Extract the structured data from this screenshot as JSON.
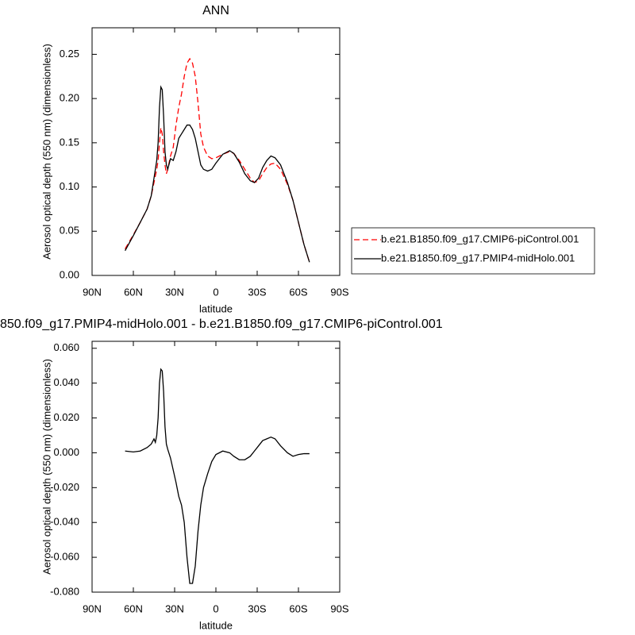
{
  "chart_data": [
    {
      "type": "line",
      "title": "ANN",
      "xlabel": "latitude",
      "ylabel": "Aerosol optical depth (550 nm) (dimensionless)",
      "x": [
        66,
        60,
        55,
        50,
        47,
        45,
        43,
        42,
        41,
        40,
        39,
        38,
        37,
        36,
        35,
        33,
        31,
        29,
        27,
        25,
        23,
        21,
        19,
        17,
        15,
        13,
        11,
        9,
        6,
        3,
        0,
        -5,
        -10,
        -13,
        -17,
        -21,
        -25,
        -28,
        -31,
        -34,
        -37,
        -40,
        -43,
        -47,
        -52,
        -56,
        -60,
        -64,
        -68
      ],
      "series": [
        {
          "name": "b.e21.B1850.f09_g17.CMIP6-piControl.001",
          "color": "#ff0000",
          "line_style": "dashed",
          "values": [
            0.03,
            0.046,
            0.06,
            0.075,
            0.09,
            0.105,
            0.12,
            0.13,
            0.15,
            0.167,
            0.16,
            0.14,
            0.125,
            0.115,
            0.12,
            0.135,
            0.145,
            0.17,
            0.19,
            0.205,
            0.225,
            0.24,
            0.245,
            0.24,
            0.225,
            0.195,
            0.16,
            0.145,
            0.135,
            0.132,
            0.133,
            0.137,
            0.14,
            0.138,
            0.13,
            0.12,
            0.11,
            0.105,
            0.107,
            0.115,
            0.122,
            0.126,
            0.127,
            0.12,
            0.103,
            0.085,
            0.06,
            0.035,
            0.015
          ]
        },
        {
          "name": "b.e21.B1850.f09_g17.PMIP4-midHolo.001",
          "color": "#000000",
          "line_style": "solid",
          "values": [
            0.028,
            0.045,
            0.06,
            0.075,
            0.09,
            0.11,
            0.13,
            0.15,
            0.19,
            0.213,
            0.21,
            0.18,
            0.14,
            0.125,
            0.12,
            0.132,
            0.13,
            0.14,
            0.155,
            0.16,
            0.165,
            0.17,
            0.17,
            0.165,
            0.155,
            0.14,
            0.125,
            0.12,
            0.118,
            0.12,
            0.127,
            0.137,
            0.141,
            0.138,
            0.128,
            0.115,
            0.107,
            0.105,
            0.11,
            0.122,
            0.13,
            0.135,
            0.133,
            0.125,
            0.105,
            0.085,
            0.06,
            0.035,
            0.015
          ]
        }
      ],
      "xlim": [
        90,
        -90
      ],
      "xticks": [
        {
          "value": 90,
          "label": "90N"
        },
        {
          "value": 60,
          "label": "60N"
        },
        {
          "value": 30,
          "label": "30N"
        },
        0,
        {
          "value": -30,
          "label": "30S"
        },
        {
          "value": -60,
          "label": "60S"
        },
        {
          "value": -90,
          "label": "90S"
        }
      ],
      "ylim": [
        0,
        0.28
      ],
      "yticks": [
        {
          "value": 0,
          "label": "0.00"
        },
        0.05,
        {
          "value": 0.1,
          "label": "0.10"
        },
        0.15,
        {
          "value": 0.2,
          "label": "0.20"
        },
        0.25
      ],
      "legend": "outside-right"
    },
    {
      "type": "line",
      "title": "850.f09_g17.PMIP4-midHolo.001 - b.e21.B1850.f09_g17.CMIP6-piControl.001",
      "xlabel": "latitude",
      "ylabel": "Aerosol optical depth (550 nm) (dimensionless)",
      "x": [
        66,
        60,
        55,
        50,
        47,
        45,
        44,
        43,
        42,
        41,
        40,
        39,
        38,
        37,
        36,
        35,
        33,
        31,
        29,
        27,
        25,
        23,
        21,
        19,
        17,
        15,
        13,
        11,
        9,
        6,
        3,
        0,
        -5,
        -10,
        -13,
        -17,
        -21,
        -25,
        -28,
        -31,
        -34,
        -37,
        -40,
        -43,
        -47,
        -52,
        -56,
        -60,
        -64,
        -68
      ],
      "values": [
        0.001,
        0.0005,
        0.001,
        0.003,
        0.005,
        0.008,
        0.006,
        0.01,
        0.02,
        0.04,
        0.048,
        0.047,
        0.035,
        0.015,
        0.005,
        0.002,
        -0.003,
        -0.01,
        -0.017,
        -0.025,
        -0.03,
        -0.04,
        -0.06,
        -0.075,
        -0.075,
        -0.065,
        -0.045,
        -0.03,
        -0.02,
        -0.012,
        -0.005,
        -0.001,
        0.001,
        0.0,
        -0.002,
        -0.004,
        -0.004,
        -0.002,
        0.001,
        0.004,
        0.007,
        0.008,
        0.009,
        0.008,
        0.004,
        0.0,
        -0.002,
        -0.001,
        -0.0005,
        -0.0005
      ],
      "color": "#000000",
      "xlim": [
        90,
        -90
      ],
      "xticks": [
        {
          "value": 90,
          "label": "90N"
        },
        {
          "value": 60,
          "label": "60N"
        },
        {
          "value": 30,
          "label": "30N"
        },
        0,
        {
          "value": -30,
          "label": "30S"
        },
        {
          "value": -60,
          "label": "60S"
        },
        {
          "value": -90,
          "label": "90S"
        }
      ],
      "ylim": [
        -0.08,
        0.064
      ],
      "yticks": [
        {
          "value": 0.06,
          "label": "0.060"
        },
        {
          "value": 0.04,
          "label": "0.040"
        },
        {
          "value": 0.02,
          "label": "0.020"
        },
        {
          "value": 0,
          "label": "0.000"
        },
        {
          "value": -0.02,
          "label": "-0.020"
        },
        {
          "value": -0.04,
          "label": "-0.040"
        },
        {
          "value": -0.06,
          "label": "-0.060"
        },
        {
          "value": -0.08,
          "label": "-0.080"
        }
      ]
    }
  ]
}
